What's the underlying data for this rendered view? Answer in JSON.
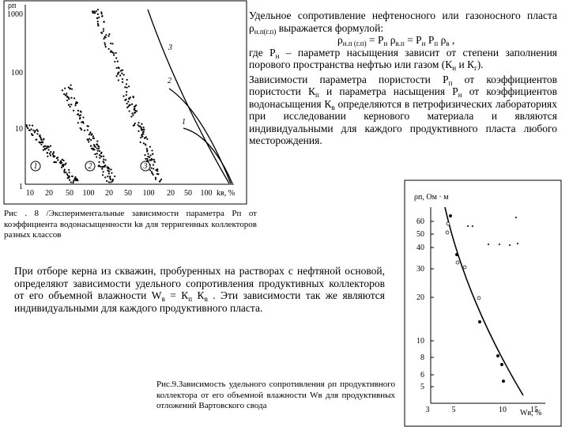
{
  "figure1": {
    "y_axis_label": "ρп",
    "yticks": [
      "1000",
      "100",
      "10",
      "1"
    ],
    "xticks": [
      "10",
      "20",
      "50",
      "100",
      "20",
      "50",
      "100",
      "20",
      "50",
      "100"
    ],
    "x_axis_label": "kв, %",
    "group_labels": [
      "1",
      "2",
      "3"
    ],
    "curve_labels": [
      "3",
      "2",
      "1"
    ],
    "caption": "Рис . 8 /Экспериментальные зависимости параметра Рп от коэффициента водонасыщенности kв для терригенных коллекторов разных классов"
  },
  "text_block": {
    "paragraph1": [
      "Удельное сопротивление нефтеносного или газоносного пласта ρ",
      "н.п(г.п)",
      " выражается формулой:"
    ],
    "formula": [
      "ρ",
      "н.п (г.п)",
      " = Р",
      "н",
      " ρ",
      "в.п",
      " = Р",
      "н",
      " Р",
      "п",
      " ρ",
      "в",
      " ,"
    ],
    "paragraph2": [
      "где Р",
      "н",
      " – параметр насыщения зависит от степени заполнения порового пространства нефтью или газом (К",
      "н",
      " и К",
      "г",
      ")."
    ],
    "paragraph3": [
      "Зависимости параметра пористости Р",
      "п",
      " от коэффициентов пористости К",
      "п",
      " и параметра насыщения Р",
      "н",
      " от коэффициентов водонасыщения К",
      "в",
      " определяются в петрофизических лабораториях при исследовании кернового материала и являются индивидуальными для каждого продуктивного пласта любого месторождения."
    ]
  },
  "middle_text": [
    "При отборе керна из скважин, пробуренных на растворах с нефтяной основой, определяют зависимости удельного сопротивления продуктивных коллекторов от его объемной влажности W",
    "в",
    " = К",
    "п",
    " К",
    "в",
    " . Эти зависимости так же являются индивидуальными для каждого продуктивного пласта."
  ],
  "figure2": {
    "y_axis_label": "ρп, Ом · м",
    "yticks": [
      "60",
      "50",
      "40",
      "30",
      "20",
      "10",
      "8",
      "6",
      "5"
    ],
    "xticks": [
      "3",
      "5",
      "10",
      "15"
    ],
    "x_axis_label": "Wв, %",
    "caption": "Рис.9.Зависимость удельного сопротивления ρп продуктивного коллектора от его объемной влажности Wв для продуктивных отложений Вартовского свода"
  }
}
